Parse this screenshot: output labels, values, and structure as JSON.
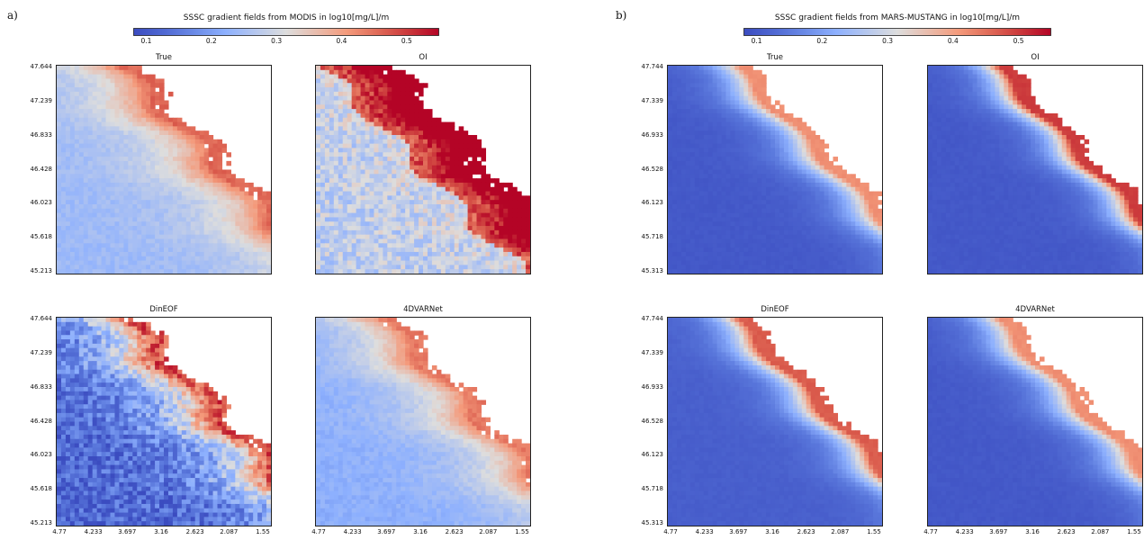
{
  "chart_data": [
    {
      "type": "heatmap",
      "panel_label": "a)",
      "title": "SSSC gradient fields from MODIS in log10[mg/L]/m",
      "colorbar": {
        "colormap": "coolwarm",
        "min": 0.08,
        "max": 0.55,
        "ticks": [
          "0.1",
          "0.2",
          "0.3",
          "0.4",
          "0.5"
        ]
      },
      "subplots": [
        {
          "title": "True",
          "style": "smooth",
          "offshore": 0.24,
          "coastal": 0.46,
          "gradient": 1.0
        },
        {
          "title": "OI",
          "style": "saturated",
          "offshore": 0.28,
          "coastal": 0.55,
          "gradient": 1.4
        },
        {
          "title": "DinEOF",
          "style": "noisy",
          "offshore": 0.12,
          "coastal": 0.48,
          "gradient": 1.0
        },
        {
          "title": "4DVARNet",
          "style": "smooth",
          "offshore": 0.22,
          "coastal": 0.44,
          "gradient": 1.0
        }
      ],
      "yticks": [
        "47.644",
        "47.239",
        "46.833",
        "46.428",
        "46.023",
        "45.618",
        "45.213"
      ],
      "xticks": [
        "4.77",
        "4.233",
        "3.697",
        "3.16",
        "2.623",
        "2.087",
        "1.55"
      ],
      "grid": false
    },
    {
      "type": "heatmap",
      "panel_label": "b)",
      "title": "SSSC gradient fields from MARS-MUSTANG in log10[mg/L]/m",
      "colorbar": {
        "colormap": "coolwarm",
        "min": 0.08,
        "max": 0.55,
        "ticks": [
          "0.1",
          "0.2",
          "0.3",
          "0.4",
          "0.5"
        ]
      },
      "subplots": [
        {
          "title": "True",
          "style": "model",
          "offshore": 0.1,
          "coastal": 0.42,
          "gradient": 1.0
        },
        {
          "title": "OI",
          "style": "model",
          "offshore": 0.1,
          "coastal": 0.5,
          "gradient": 1.2
        },
        {
          "title": "DinEOF",
          "style": "model",
          "offshore": 0.11,
          "coastal": 0.47,
          "gradient": 1.1
        },
        {
          "title": "4DVARNet",
          "style": "model",
          "offshore": 0.1,
          "coastal": 0.42,
          "gradient": 1.0
        }
      ],
      "yticks": [
        "47.744",
        "47.339",
        "46.933",
        "46.528",
        "46.123",
        "45.718",
        "45.313"
      ],
      "xticks": [
        "4.77",
        "4.233",
        "3.697",
        "3.16",
        "2.623",
        "2.087",
        "1.55"
      ],
      "grid": false
    }
  ],
  "colors": {
    "cold": "#3b4cc0",
    "neutral": "#dddddd",
    "warm": "#b40426"
  }
}
